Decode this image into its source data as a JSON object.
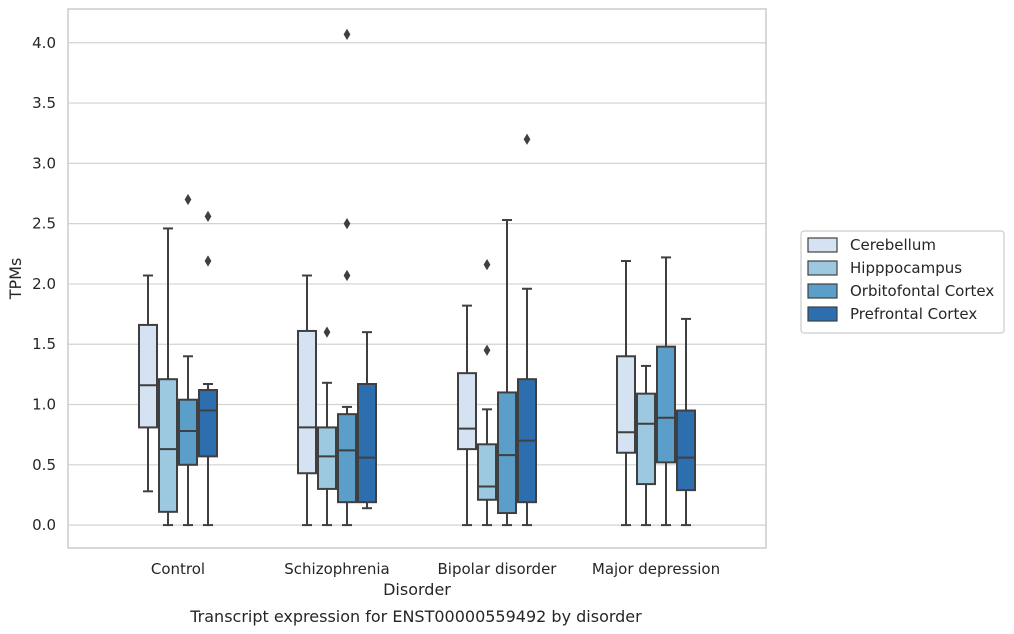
{
  "caption": "Transcript expression for ENST00000559492 by disorder",
  "chart_data": {
    "type": "boxplot",
    "xlabel": "Disorder",
    "ylabel": "TPMs",
    "ylim": [
      -0.19,
      4.28
    ],
    "yticks": [
      "0.0",
      "0.5",
      "1.0",
      "1.5",
      "2.0",
      "2.5",
      "3.0",
      "3.5",
      "4.0"
    ],
    "grid": "horizontal",
    "legend_position": "right",
    "categories": [
      "Control",
      "Schizophrenia",
      "Bipolar disorder",
      "Major depression"
    ],
    "series": [
      {
        "name": "Cerebellum",
        "color": "#d4e2f1",
        "boxes": [
          {
            "whislo": 0.28,
            "q1": 0.81,
            "med": 1.16,
            "q3": 1.66,
            "whishi": 2.07,
            "fliers": []
          },
          {
            "whislo": 0.0,
            "q1": 0.43,
            "med": 0.81,
            "q3": 1.61,
            "whishi": 2.07,
            "fliers": []
          },
          {
            "whislo": 0.0,
            "q1": 0.63,
            "med": 0.8,
            "q3": 1.26,
            "whishi": 1.82,
            "fliers": []
          },
          {
            "whislo": 0.0,
            "q1": 0.6,
            "med": 0.77,
            "q3": 1.4,
            "whishi": 2.19,
            "fliers": []
          }
        ]
      },
      {
        "name": "Hipppocampus",
        "color": "#9dc9e0",
        "boxes": [
          {
            "whislo": 0.0,
            "q1": 0.11,
            "med": 0.63,
            "q3": 1.21,
            "whishi": 2.46,
            "fliers": []
          },
          {
            "whislo": 0.0,
            "q1": 0.3,
            "med": 0.57,
            "q3": 0.81,
            "whishi": 1.18,
            "fliers": [
              1.6
            ]
          },
          {
            "whislo": 0.0,
            "q1": 0.21,
            "med": 0.32,
            "q3": 0.67,
            "whishi": 0.96,
            "fliers": [
              1.45,
              2.16
            ]
          },
          {
            "whislo": 0.0,
            "q1": 0.34,
            "med": 0.84,
            "q3": 1.09,
            "whishi": 1.32,
            "fliers": []
          }
        ]
      },
      {
        "name": "Orbitofontal Cortex",
        "color": "#5b9ec9",
        "boxes": [
          {
            "whislo": 0.0,
            "q1": 0.5,
            "med": 0.78,
            "q3": 1.04,
            "whishi": 1.4,
            "fliers": [
              2.7
            ]
          },
          {
            "whislo": 0.0,
            "q1": 0.19,
            "med": 0.62,
            "q3": 0.92,
            "whishi": 0.98,
            "fliers": [
              2.07,
              2.5,
              4.07
            ]
          },
          {
            "whislo": 0.0,
            "q1": 0.1,
            "med": 0.58,
            "q3": 1.1,
            "whishi": 2.53,
            "fliers": []
          },
          {
            "whislo": 0.0,
            "q1": 0.52,
            "med": 0.89,
            "q3": 1.48,
            "whishi": 2.22,
            "fliers": []
          }
        ]
      },
      {
        "name": "Prefrontal Cortex",
        "color": "#2d6fae",
        "boxes": [
          {
            "whislo": 0.0,
            "q1": 0.57,
            "med": 0.95,
            "q3": 1.12,
            "whishi": 1.17,
            "fliers": [
              2.19,
              2.56
            ]
          },
          {
            "whislo": 0.14,
            "q1": 0.19,
            "med": 0.56,
            "q3": 1.17,
            "whishi": 1.6,
            "fliers": []
          },
          {
            "whislo": 0.0,
            "q1": 0.19,
            "med": 0.7,
            "q3": 1.21,
            "whishi": 1.96,
            "fliers": [
              3.2
            ]
          },
          {
            "whislo": 0.0,
            "q1": 0.29,
            "med": 0.56,
            "q3": 0.95,
            "whishi": 1.71,
            "fliers": []
          }
        ]
      }
    ],
    "colors": {
      "edge": "#3f3f3f",
      "grid": "#d3d3d3",
      "frame": "#cccccc",
      "text": "#262626"
    }
  }
}
